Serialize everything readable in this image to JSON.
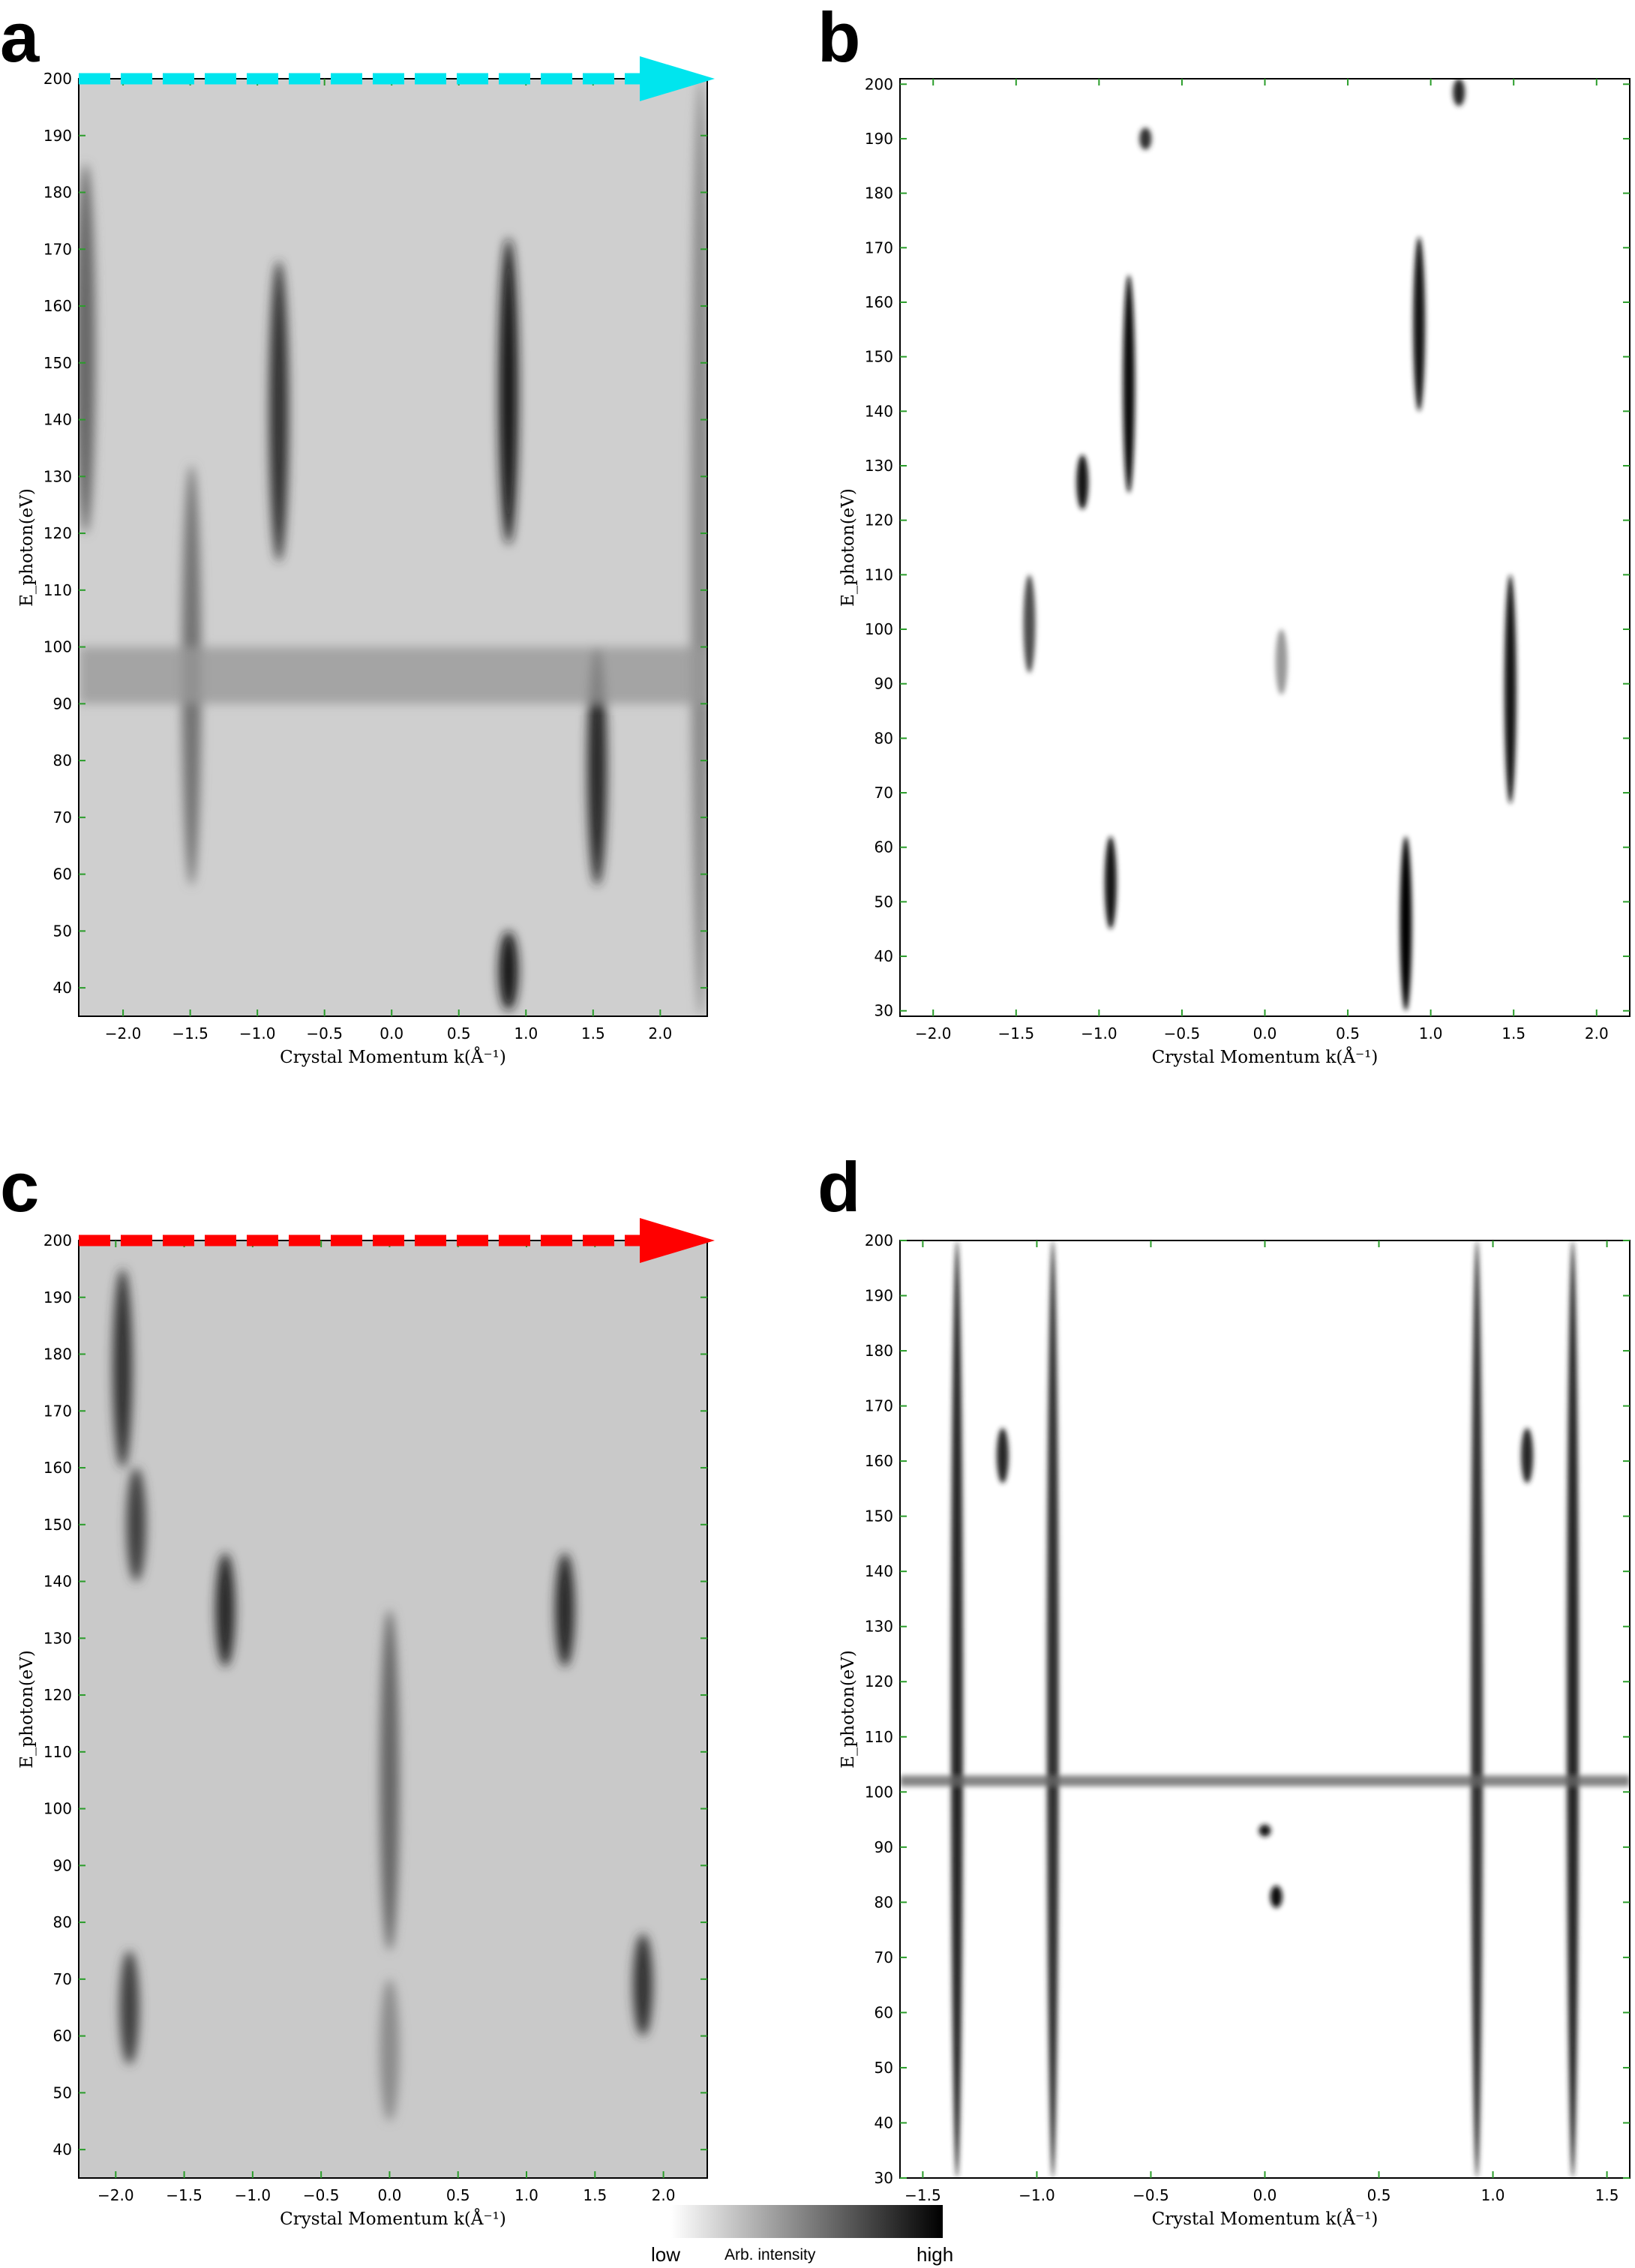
{
  "chart_data": [
    {
      "panel": "a",
      "type": "heatmap",
      "xlabel": "Crystal Momentum k(Å⁻¹)",
      "ylabel": "E_photon(eV)",
      "xlim": [
        -2.33,
        2.35
      ],
      "ylim": [
        35,
        200
      ],
      "xticks": [
        -2.0,
        -1.5,
        -1.0,
        -0.5,
        0.0,
        0.5,
        1.0,
        1.5,
        2.0
      ],
      "xtick_labels": [
        "−2.0",
        "−1.5",
        "−1.0",
        "−0.5",
        "0.0",
        "0.5",
        "1.0",
        "1.5",
        "2.0"
      ],
      "yticks": [
        40,
        50,
        60,
        70,
        80,
        90,
        100,
        110,
        120,
        130,
        140,
        150,
        160,
        170,
        180,
        190,
        200
      ],
      "colormap": "grayscale (low = white, high = black)",
      "arrow": {
        "color": "#00e5ee",
        "style": "dashed",
        "direction": "right",
        "at_y": 200
      },
      "features": [
        {
          "k": 0.87,
          "e_range": [
            118,
            172
          ],
          "intensity": 0.9
        },
        {
          "k": 0.87,
          "e_range": [
            36,
            50
          ],
          "intensity": 0.9
        },
        {
          "k": -0.84,
          "e_range": [
            115,
            168
          ],
          "intensity": 0.8
        },
        {
          "k": 1.53,
          "e_range": [
            58,
            100
          ],
          "intensity": 0.85
        },
        {
          "k": -1.49,
          "e_range": [
            58,
            132
          ],
          "intensity": 0.55
        },
        {
          "k": -2.28,
          "e_range": [
            120,
            185
          ],
          "intensity": 0.6
        },
        {
          "k": 2.3,
          "e_range": [
            35,
            200
          ],
          "intensity": 0.45
        },
        {
          "k": 0.0,
          "e_range": [
            90,
            100
          ],
          "intensity": 0.4,
          "note": "horizontal dark band across full k-range"
        }
      ]
    },
    {
      "panel": "b",
      "type": "heatmap",
      "xlabel": "Crystal Momentum k(Å⁻¹)",
      "ylabel": "E_photon(eV)",
      "xlim": [
        -2.2,
        2.2
      ],
      "ylim": [
        29,
        201
      ],
      "xticks": [
        -2.0,
        -1.5,
        -1.0,
        -0.5,
        0.0,
        0.5,
        1.0,
        1.5,
        2.0
      ],
      "xtick_labels": [
        "−2.0",
        "−1.5",
        "−1.0",
        "−0.5",
        "0.0",
        "0.5",
        "1.0",
        "1.5",
        "2.0"
      ],
      "yticks": [
        30,
        40,
        50,
        60,
        70,
        80,
        90,
        100,
        110,
        120,
        130,
        140,
        150,
        160,
        170,
        180,
        190,
        200
      ],
      "colormap": "grayscale (low = white, high = black)",
      "features": [
        {
          "k": 0.85,
          "e_range": [
            30,
            62
          ],
          "intensity": 1.0
        },
        {
          "k": 0.93,
          "e_range": [
            140,
            172
          ],
          "intensity": 0.9
        },
        {
          "k": -0.82,
          "e_range": [
            125,
            165
          ],
          "intensity": 0.95
        },
        {
          "k": -1.1,
          "e_range": [
            122,
            132
          ],
          "intensity": 0.9
        },
        {
          "k": -0.93,
          "e_range": [
            45,
            62
          ],
          "intensity": 0.9
        },
        {
          "k": 1.48,
          "e_range": [
            68,
            110
          ],
          "intensity": 0.9
        },
        {
          "k": -1.42,
          "e_range": [
            92,
            110
          ],
          "intensity": 0.7
        },
        {
          "k": -0.72,
          "e_range": [
            188,
            192
          ],
          "intensity": 0.8
        },
        {
          "k": 1.17,
          "e_range": [
            196,
            201
          ],
          "intensity": 0.85
        },
        {
          "k": 0.1,
          "e_range": [
            88,
            100
          ],
          "intensity": 0.4
        }
      ]
    },
    {
      "panel": "c",
      "type": "heatmap",
      "xlabel": "Crystal Momentum k(Å⁻¹)",
      "ylabel": "E_photon(eV)",
      "xlim": [
        -2.27,
        2.32
      ],
      "ylim": [
        35,
        200
      ],
      "xticks": [
        -2.0,
        -1.5,
        -1.0,
        -0.5,
        0.0,
        0.5,
        1.0,
        1.5,
        2.0
      ],
      "xtick_labels": [
        "−2.0",
        "−1.5",
        "−1.0",
        "−0.5",
        "0.0",
        "0.5",
        "1.0",
        "1.5",
        "2.0"
      ],
      "yticks": [
        40,
        50,
        60,
        70,
        80,
        90,
        100,
        110,
        120,
        130,
        140,
        150,
        160,
        170,
        180,
        190,
        200
      ],
      "colormap": "grayscale (low = white, high = black)",
      "arrow": {
        "color": "#ff0000",
        "style": "dashed",
        "direction": "right",
        "at_y": 200
      },
      "features": [
        {
          "k": -1.95,
          "e_range": [
            160,
            195
          ],
          "intensity": 0.8
        },
        {
          "k": -1.85,
          "e_range": [
            140,
            160
          ],
          "intensity": 0.75
        },
        {
          "k": -1.2,
          "e_range": [
            125,
            145
          ],
          "intensity": 0.85
        },
        {
          "k": 1.28,
          "e_range": [
            125,
            145
          ],
          "intensity": 0.85
        },
        {
          "k": 1.85,
          "e_range": [
            60,
            78
          ],
          "intensity": 0.8
        },
        {
          "k": -1.9,
          "e_range": [
            55,
            75
          ],
          "intensity": 0.75
        },
        {
          "k": 0.0,
          "e_range": [
            75,
            135
          ],
          "intensity": 0.6
        },
        {
          "k": 0.0,
          "e_range": [
            45,
            70
          ],
          "intensity": 0.45
        }
      ]
    },
    {
      "panel": "d",
      "type": "heatmap",
      "xlabel": "Crystal Momentum k(Å⁻¹)",
      "ylabel": "E_photon(eV)",
      "xlim": [
        -1.6,
        1.6
      ],
      "ylim": [
        30,
        200
      ],
      "xticks": [
        -1.5,
        -1.0,
        -0.5,
        0.0,
        0.5,
        1.0,
        1.5
      ],
      "xtick_labels": [
        "−1.5",
        "−1.0",
        "−0.5",
        "0.0",
        "0.5",
        "1.0",
        "1.5"
      ],
      "yticks": [
        30,
        40,
        50,
        60,
        70,
        80,
        90,
        100,
        110,
        120,
        130,
        140,
        150,
        160,
        170,
        180,
        190,
        200
      ],
      "colormap": "grayscale (low = white, high = black)",
      "features": [
        {
          "k": -1.35,
          "e_range": [
            30,
            200
          ],
          "intensity": 0.85
        },
        {
          "k": -0.93,
          "e_range": [
            30,
            200
          ],
          "intensity": 0.8
        },
        {
          "k": 0.93,
          "e_range": [
            30,
            200
          ],
          "intensity": 0.8
        },
        {
          "k": 1.35,
          "e_range": [
            30,
            200
          ],
          "intensity": 0.85
        },
        {
          "k": -1.15,
          "e_range": [
            156,
            166
          ],
          "intensity": 0.85
        },
        {
          "k": 1.15,
          "e_range": [
            156,
            166
          ],
          "intensity": 0.85
        },
        {
          "k": 0.05,
          "e_range": [
            79,
            83
          ],
          "intensity": 0.95
        },
        {
          "k": 0.0,
          "e_range": [
            92,
            94
          ],
          "intensity": 0.9
        },
        {
          "k": 0.0,
          "e_range": [
            101,
            103
          ],
          "intensity": 0.6,
          "note": "horizontal band across full k-range"
        }
      ]
    }
  ],
  "panel_letters": {
    "a": "a",
    "b": "b",
    "c": "c",
    "d": "d"
  },
  "colorbar": {
    "title": "Arb. intensity",
    "low_label": "low",
    "high_label": "high",
    "colors": [
      "#ffffff",
      "#000000"
    ]
  },
  "colors": {
    "tick_color": "#2a9d2a",
    "cyan_arrow": "#00e5ee",
    "red_arrow": "#ff0000"
  }
}
